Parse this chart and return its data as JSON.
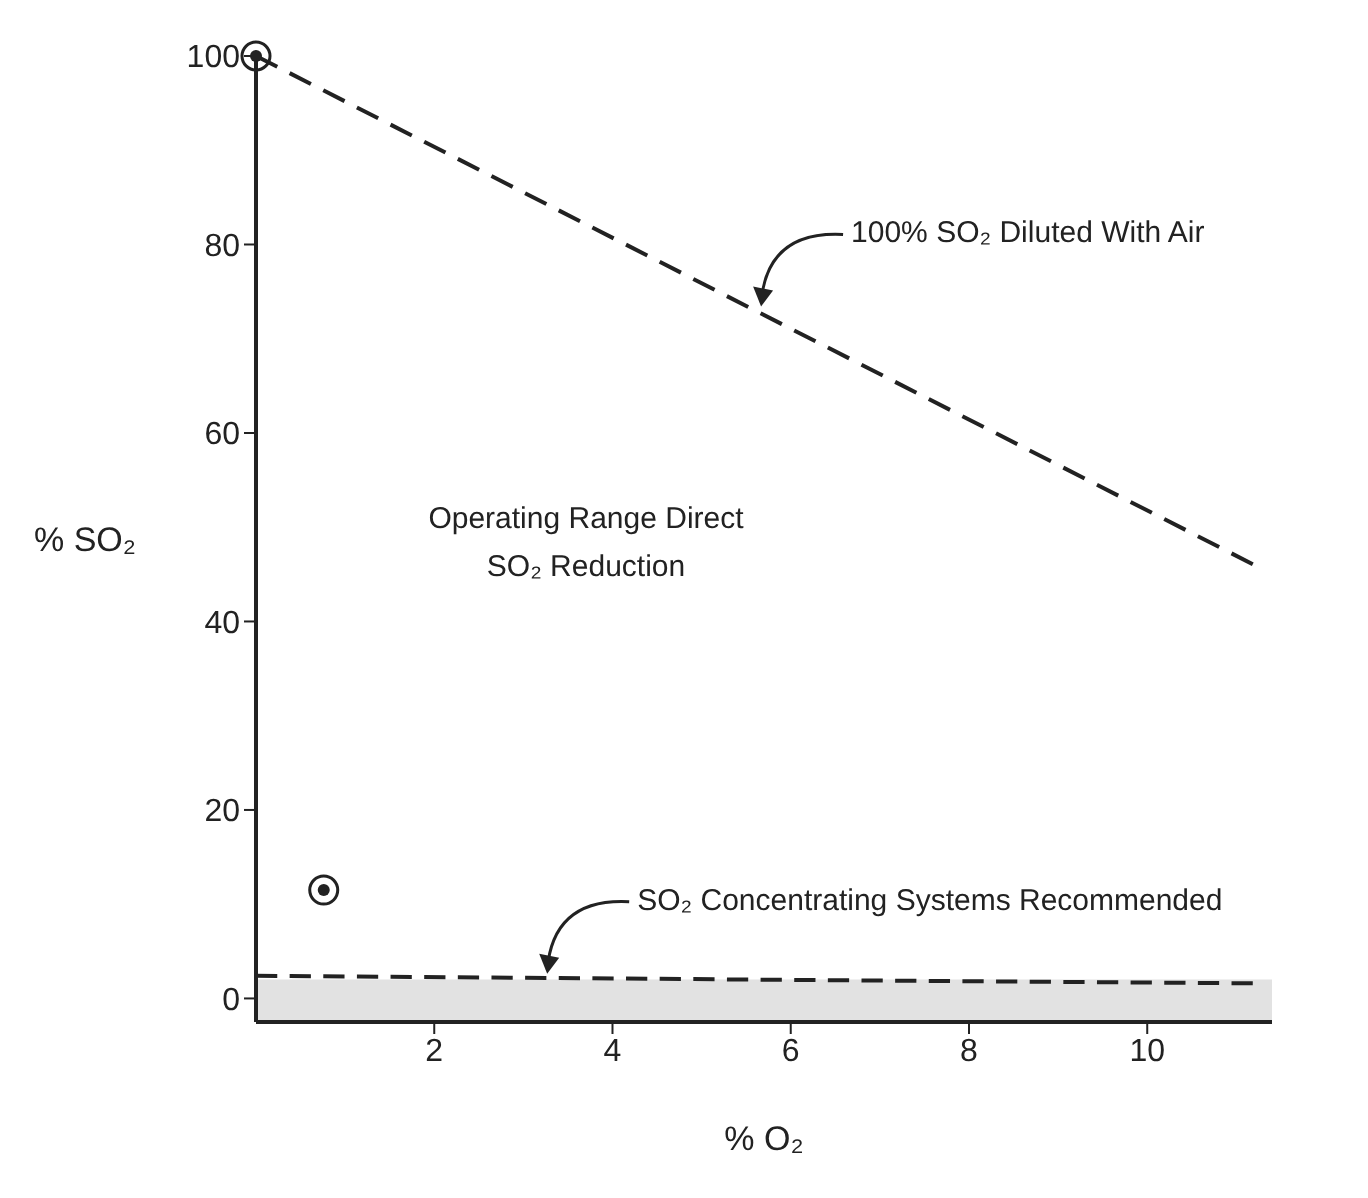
{
  "chart_data": {
    "type": "line",
    "xlabel": "% O₂",
    "ylabel": "% SO₂",
    "xlim": [
      0,
      11.4
    ],
    "ylim": [
      -2.5,
      100
    ],
    "xticks": [
      2,
      4,
      6,
      8,
      10
    ],
    "yticks": [
      0,
      20,
      40,
      60,
      80,
      100
    ],
    "grid": false,
    "series": [
      {
        "color": "#222222",
        "line_style": "dashed",
        "x": [
          0,
          11.2
        ],
        "values": [
          100,
          46
        ]
      },
      {
        "color": "#222222",
        "line_style": "dashed",
        "x": [
          0,
          11.2
        ],
        "values": [
          2.4,
          1.6
        ]
      },
      {
        "type": "scatter",
        "color": "#222222",
        "marker": "circle",
        "x": [
          0,
          0.76
        ],
        "values": [
          100,
          11.5
        ]
      }
    ],
    "bands": [
      {
        "axis": "y",
        "from": -2.5,
        "to": 2,
        "color": "#e2e2e2"
      }
    ],
    "annotations": [
      {
        "text": "100% SO₂ Diluted With Air",
        "x": 5.6,
        "y": 73
      },
      {
        "text": "SO₂ Concentrating Systems Recommended",
        "x": 3.2,
        "y": 2.2
      },
      "Operating Range Direct SO₂ Reduction"
    ]
  }
}
